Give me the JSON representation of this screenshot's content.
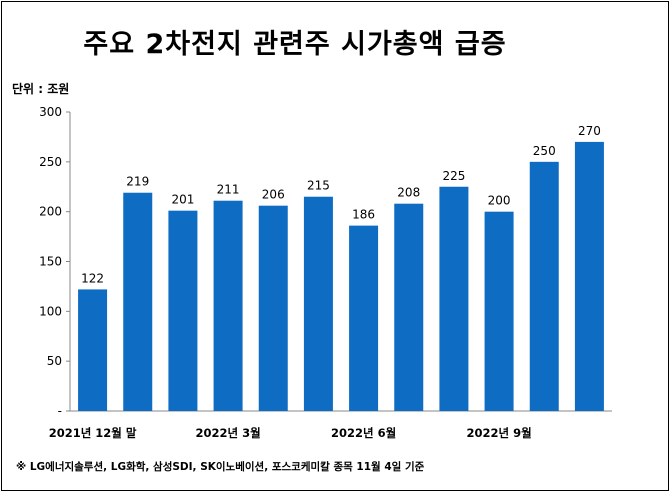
{
  "chart_data": {
    "type": "bar",
    "title": "주요 2차전지 관련주 시가총액  급증",
    "unit_label": "단위 : 조원",
    "categories": [
      "2021년 12월 말",
      "",
      "",
      "2022년 3월",
      "",
      "",
      "2022년 6월",
      "",
      "",
      "2022년 9월",
      "",
      ""
    ],
    "values": [
      122,
      219,
      201,
      211,
      206,
      215,
      186,
      208,
      225,
      200,
      250,
      270
    ],
    "ylim": [
      0,
      300
    ],
    "yticks": [
      "-",
      "50",
      "100",
      "150",
      "200",
      "250",
      "300"
    ],
    "grid": false,
    "bar_color": "#0F6CC3",
    "footnote": "※ LG에너지솔루션, LG화학, 삼성SDI, SK이노베이션, 포스코케미칼 종목  11월 4일 기준"
  }
}
